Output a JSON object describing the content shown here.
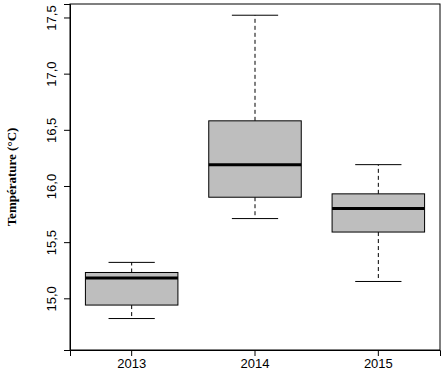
{
  "chart_data": {
    "type": "box",
    "y_label": "Température (°C)",
    "categories": [
      "2013",
      "2014",
      "2015"
    ],
    "boxes": [
      {
        "min": 14.82,
        "q1": 14.94,
        "median": 15.18,
        "q3": 15.23,
        "max": 15.32
      },
      {
        "min": 15.71,
        "q1": 15.9,
        "median": 16.19,
        "q3": 16.58,
        "max": 17.52
      },
      {
        "min": 15.15,
        "q1": 15.59,
        "median": 15.8,
        "q3": 15.93,
        "max": 16.19
      }
    ],
    "color": "#bebebe",
    "ylim": [
      14.54,
      17.62
    ],
    "yticks": [
      {
        "value": 15,
        "label": "15,0"
      },
      {
        "value": 15.5,
        "label": "15,5"
      },
      {
        "value": 16,
        "label": "16,0"
      },
      {
        "value": 16.5,
        "label": "16,5"
      },
      {
        "value": 17,
        "label": "17,0"
      },
      {
        "value": 17.5,
        "label": "17,5"
      }
    ],
    "grid": false
  }
}
